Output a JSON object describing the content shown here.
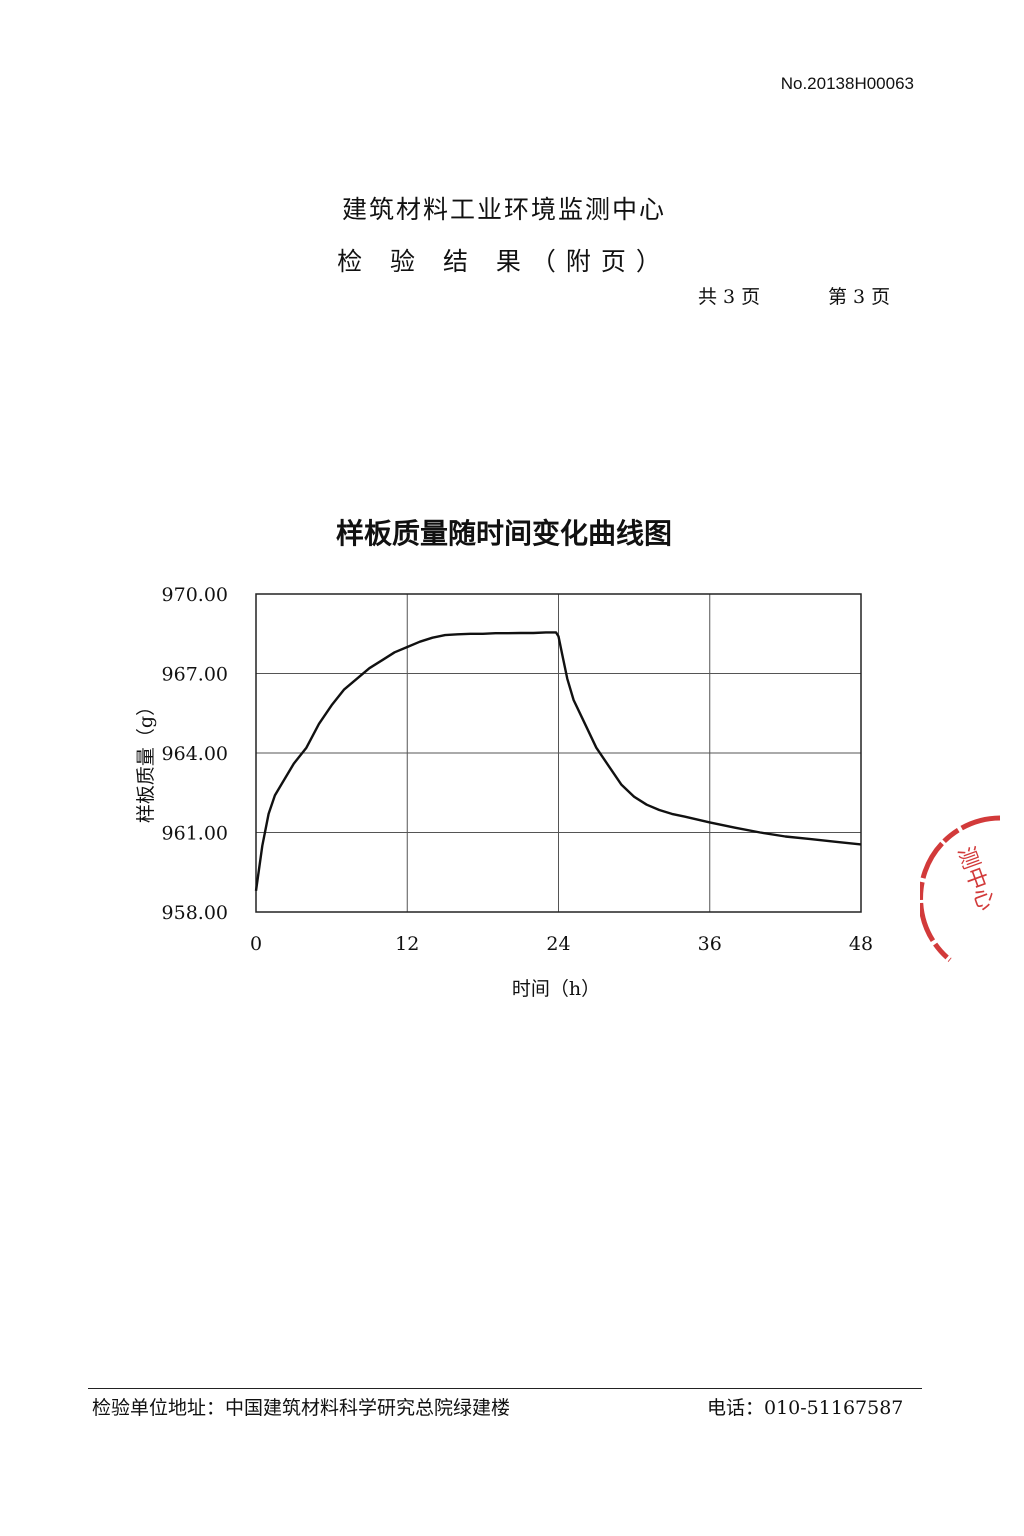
{
  "header": {
    "doc_no": "No.20138H00063",
    "organization": "建筑材料工业环境监测中心",
    "report_title": "检 验 结 果（附页）",
    "page_total": "共 3 页",
    "page_current": "第 3 页"
  },
  "chart_data": {
    "type": "line",
    "title": "样板质量随时间变化曲线图",
    "xlabel": "时间（h）",
    "ylabel": "样板质量（g）",
    "xlim": [
      0,
      48
    ],
    "ylim": [
      958.0,
      970.0
    ],
    "x_ticks": [
      "0",
      "12",
      "24",
      "36",
      "48"
    ],
    "y_ticks": [
      "970.00",
      "967.00",
      "964.00",
      "961.00",
      "958.00"
    ],
    "grid": true,
    "line_color": "#111111",
    "series": [
      {
        "x": [
          0,
          0.5,
          1,
          1.5,
          2,
          3,
          4,
          5,
          6,
          7,
          8,
          9,
          10,
          11,
          12,
          13,
          14,
          15,
          16,
          17,
          18,
          19,
          20,
          21,
          22,
          23,
          23.8,
          24,
          24.3,
          24.7,
          25.2,
          26,
          27,
          28,
          29,
          30,
          31,
          32,
          33,
          34,
          36,
          38,
          40,
          42,
          44,
          46,
          48
        ],
        "y": [
          958.8,
          960.5,
          961.7,
          962.4,
          962.8,
          963.6,
          964.2,
          965.1,
          965.8,
          966.4,
          966.8,
          967.2,
          967.5,
          967.8,
          968.0,
          968.2,
          968.35,
          968.45,
          968.48,
          968.5,
          968.5,
          968.52,
          968.52,
          968.53,
          968.53,
          968.55,
          968.55,
          968.4,
          967.7,
          966.8,
          966.0,
          965.2,
          964.2,
          963.5,
          962.8,
          962.35,
          962.05,
          961.85,
          961.7,
          961.6,
          961.38,
          961.18,
          961.0,
          960.85,
          960.75,
          960.65,
          960.55
        ]
      }
    ]
  },
  "footer": {
    "address": "检验单位地址：中国建筑材料科学研究总院绿建楼",
    "phone": "电话：010-51167587"
  },
  "stamp": {
    "text": "测中心",
    "color": "#d23a3a"
  }
}
